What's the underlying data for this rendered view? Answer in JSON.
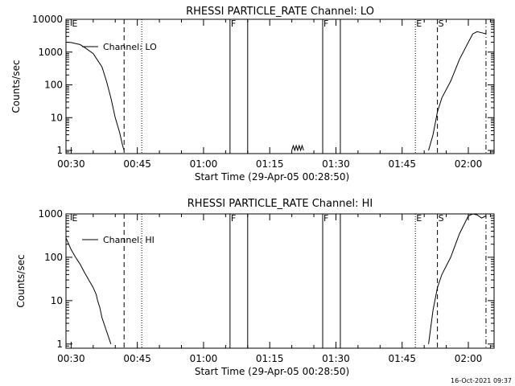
{
  "footer_timestamp": "16-Oct-2021 09:37",
  "chart_data": [
    {
      "type": "line",
      "title": "RHESSI PARTICLE_RATE Channel: LO",
      "xlabel": "Start Time (29-Apr-05 00:28:50)",
      "ylabel": "Counts/sec",
      "yscale": "log",
      "ylim": [
        0.8,
        10000
      ],
      "xlim_minutes": [
        0,
        97
      ],
      "x_tick_labels": [
        "00:30",
        "00:45",
        "01:00",
        "01:15",
        "01:30",
        "01:45",
        "02:00"
      ],
      "y_tick_labels": [
        "1",
        "10",
        "100",
        "1000",
        "10000"
      ],
      "y_tick_values": [
        1,
        10,
        100,
        1000,
        10000
      ],
      "legend": "Channel: LO",
      "markers": [
        {
          "label": "E",
          "time": "00:30",
          "style": "none"
        },
        {
          "label": "",
          "time": "00:42",
          "style": "dashed"
        },
        {
          "label": "",
          "time": "00:46",
          "style": "dotted"
        },
        {
          "label": "F",
          "time": "01:06",
          "style": "solid"
        },
        {
          "label": "",
          "time": "01:10",
          "style": "solid"
        },
        {
          "label": "F",
          "time": "01:27",
          "style": "solid"
        },
        {
          "label": "",
          "time": "01:31",
          "style": "solid"
        },
        {
          "label": "E",
          "time": "01:48",
          "style": "dotted"
        },
        {
          "label": "S",
          "time": "01:53",
          "style": "dashed"
        },
        {
          "label": "",
          "time": "02:04",
          "style": "dashdot"
        }
      ],
      "series": [
        {
          "segments": [
            [
              [
                "00:28:50",
                2000
              ],
              [
                "00:30",
                1950
              ],
              [
                "00:32",
                1700
              ],
              [
                "00:33",
                1400
              ],
              [
                "00:35",
                900
              ],
              [
                "00:37",
                350
              ],
              [
                "00:38",
                130
              ],
              [
                "00:39",
                40
              ],
              [
                "00:40",
                10
              ],
              [
                "00:41",
                3.5
              ],
              [
                "00:41:40",
                1.4
              ],
              [
                "00:42",
                1
              ]
            ],
            [
              [
                "01:20",
                1
              ],
              [
                "01:20:20",
                1.4
              ],
              [
                "01:20:40",
                1
              ],
              [
                "01:21",
                1.4
              ],
              [
                "01:21:20",
                1
              ],
              [
                "01:21:40",
                1.4
              ],
              [
                "01:22",
                1
              ],
              [
                "01:22:20",
                1.4
              ],
              [
                "01:22:40",
                1
              ]
            ],
            [
              [
                "01:51",
                1
              ],
              [
                "01:52",
                3
              ],
              [
                "01:53",
                15
              ],
              [
                "01:54",
                40
              ],
              [
                "01:56",
                130
              ],
              [
                "01:58",
                600
              ],
              [
                "02:00",
                2000
              ],
              [
                "02:01",
                3600
              ],
              [
                "02:02",
                4200
              ],
              [
                "02:03",
                3900
              ],
              [
                "02:04",
                3600
              ]
            ]
          ]
        }
      ]
    },
    {
      "type": "line",
      "title": "RHESSI PARTICLE_RATE Channel: HI",
      "xlabel": "Start Time (29-Apr-05 00:28:50)",
      "ylabel": "Counts/sec",
      "yscale": "log",
      "ylim": [
        0.8,
        1000
      ],
      "xlim_minutes": [
        0,
        97
      ],
      "x_tick_labels": [
        "00:30",
        "00:45",
        "01:00",
        "01:15",
        "01:30",
        "01:45",
        "02:00"
      ],
      "y_tick_labels": [
        "1",
        "10",
        "100",
        "1000"
      ],
      "y_tick_values": [
        1,
        10,
        100,
        1000
      ],
      "legend": "Channel: HI",
      "markers": [
        {
          "label": "E",
          "time": "00:30",
          "style": "none"
        },
        {
          "label": "",
          "time": "00:42",
          "style": "dashed"
        },
        {
          "label": "",
          "time": "00:46",
          "style": "dotted"
        },
        {
          "label": "F",
          "time": "01:06",
          "style": "solid"
        },
        {
          "label": "",
          "time": "01:10",
          "style": "solid"
        },
        {
          "label": "F",
          "time": "01:27",
          "style": "solid"
        },
        {
          "label": "",
          "time": "01:31",
          "style": "solid"
        },
        {
          "label": "E",
          "time": "01:48",
          "style": "dotted"
        },
        {
          "label": "S",
          "time": "01:53",
          "style": "dashed"
        },
        {
          "label": "",
          "time": "02:04",
          "style": "dashdot"
        }
      ],
      "series": [
        {
          "segments": [
            [
              [
                "00:28:50",
                280
              ],
              [
                "00:30",
                150
              ],
              [
                "00:31",
                100
              ],
              [
                "00:32",
                70
              ],
              [
                "00:33",
                45
              ],
              [
                "00:34",
                30
              ],
              [
                "00:35",
                20
              ],
              [
                "00:35:40",
                14
              ],
              [
                "00:36",
                10
              ],
              [
                "00:36:30",
                7
              ],
              [
                "00:37",
                4
              ],
              [
                "00:38",
                2
              ],
              [
                "00:39",
                1
              ]
            ],
            [
              [
                "01:51",
                1
              ],
              [
                "01:52",
                6
              ],
              [
                "01:53",
                20
              ],
              [
                "01:54",
                40
              ],
              [
                "01:56",
                100
              ],
              [
                "01:58",
                350
              ],
              [
                "02:00",
                900
              ],
              [
                "02:01",
                1000
              ],
              [
                "02:02",
                950
              ],
              [
                "02:03",
                800
              ],
              [
                "02:04",
                900
              ]
            ]
          ]
        }
      ]
    }
  ]
}
